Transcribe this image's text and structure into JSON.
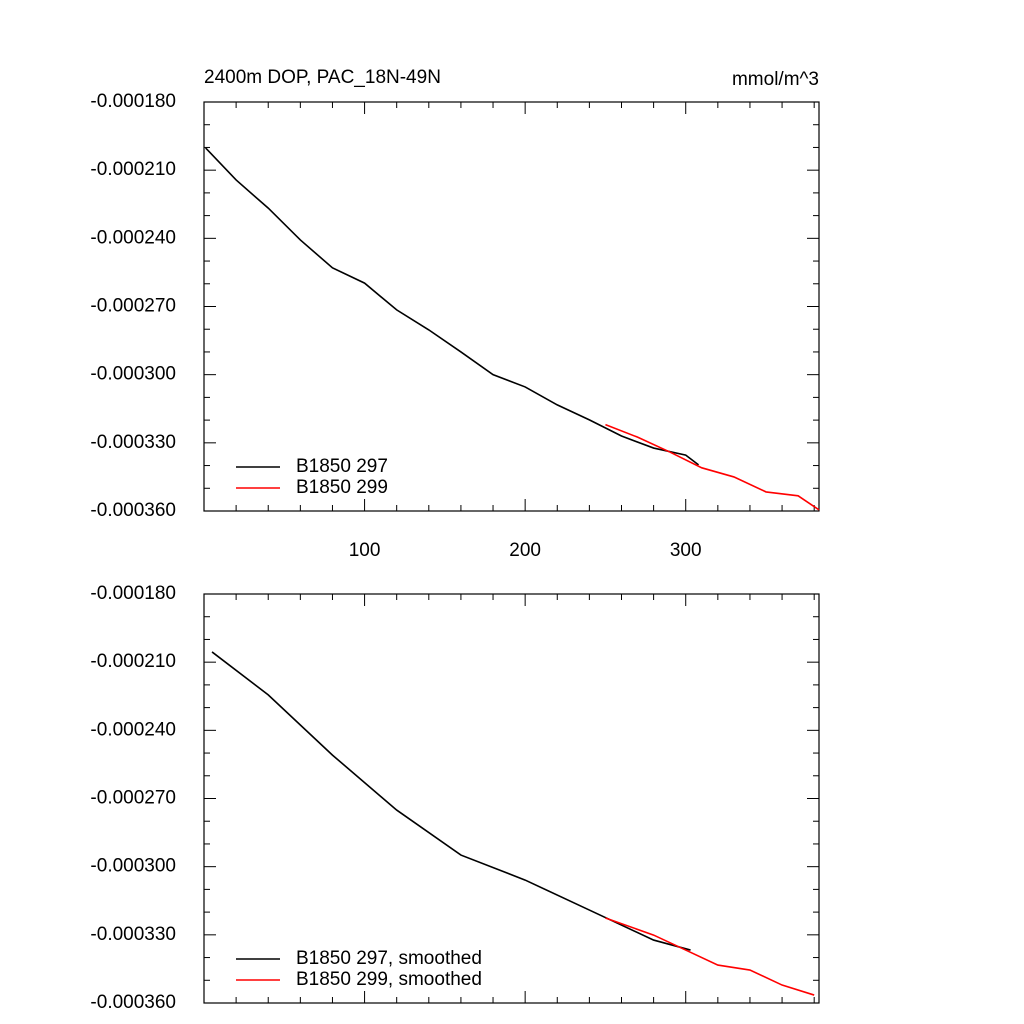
{
  "chart_data": [
    {
      "type": "line",
      "title": "2400m DOP, PAC_18N-49N",
      "units": "mmol/m^3",
      "xlim": [
        0,
        383
      ],
      "xticks": [
        100,
        200,
        300
      ],
      "ylim": [
        -0.00036,
        -0.00018
      ],
      "yticks": [
        {
          "value": -0.00018,
          "label": "-0.000180"
        },
        {
          "value": -0.00021,
          "label": "-0.000210"
        },
        {
          "value": -0.00024,
          "label": "-0.000240"
        },
        {
          "value": -0.00027,
          "label": "-0.000270"
        },
        {
          "value": -0.0003,
          "label": "-0.000300"
        },
        {
          "value": -0.00033,
          "label": "-0.000330"
        },
        {
          "value": -0.00036,
          "label": "-0.000360"
        }
      ],
      "legend": "lower left",
      "series": [
        {
          "name": "B1850 297",
          "color": "#000000",
          "x": [
            1,
            20,
            40,
            60,
            80,
            100,
            120,
            140,
            160,
            180,
            200,
            220,
            240,
            260,
            280,
            300,
            308
          ],
          "values": [
            -0.0002002,
            -0.0002143,
            -0.0002267,
            -0.0002407,
            -0.000253,
            -0.0002597,
            -0.0002715,
            -0.0002803,
            -0.00029,
            -0.0003,
            -0.0003054,
            -0.0003133,
            -0.0003199,
            -0.000327,
            -0.0003323,
            -0.0003354,
            -0.0003397
          ]
        },
        {
          "name": "B1850 299",
          "color": "#ff0000",
          "x": [
            250,
            270,
            290,
            310,
            330,
            350,
            370,
            383
          ],
          "values": [
            -0.000322,
            -0.0003275,
            -0.000334,
            -0.000341,
            -0.000345,
            -0.0003516,
            -0.0003533,
            -0.0003595
          ]
        }
      ]
    },
    {
      "type": "line",
      "xlim": [
        0,
        383
      ],
      "xticks": [
        100,
        200,
        300
      ],
      "ylim": [
        -0.00036,
        -0.00018
      ],
      "yticks": [
        {
          "value": -0.00018,
          "label": "-0.000180"
        },
        {
          "value": -0.00021,
          "label": "-0.000210"
        },
        {
          "value": -0.00024,
          "label": "-0.000240"
        },
        {
          "value": -0.00027,
          "label": "-0.000270"
        },
        {
          "value": -0.0003,
          "label": "-0.000300"
        },
        {
          "value": -0.00033,
          "label": "-0.000330"
        },
        {
          "value": -0.00036,
          "label": "-0.000360"
        }
      ],
      "legend": "lower left",
      "series": [
        {
          "name": "B1850 297, smoothed",
          "color": "#000000",
          "x": [
            5,
            40,
            80,
            120,
            160,
            200,
            240,
            280,
            303
          ],
          "values": [
            -0.0002055,
            -0.0002244,
            -0.0002509,
            -0.0002751,
            -0.0002949,
            -0.0003059,
            -0.0003191,
            -0.0003323,
            -0.0003367
          ]
        },
        {
          "name": "B1850 299, smoothed",
          "color": "#ff0000",
          "x": [
            250,
            280,
            300,
            320,
            340,
            360,
            380
          ],
          "values": [
            -0.0003226,
            -0.0003301,
            -0.0003367,
            -0.0003433,
            -0.0003455,
            -0.0003521,
            -0.0003565
          ]
        }
      ]
    }
  ]
}
